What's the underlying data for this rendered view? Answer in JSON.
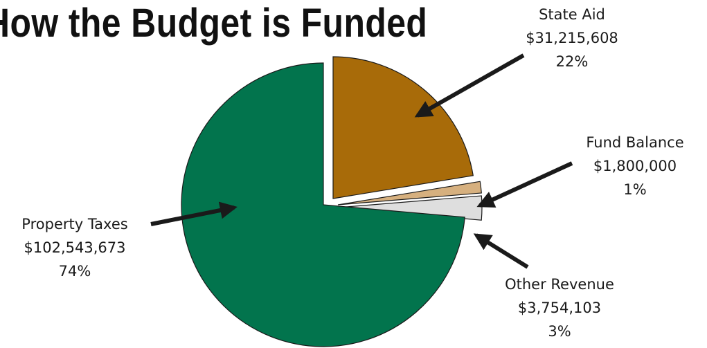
{
  "title": "How the Budget is Funded",
  "chart_data": {
    "type": "pie",
    "title": "How the Budget is Funded",
    "slices": [
      {
        "name": "State Aid",
        "value": 31215608,
        "value_label": "$31,215,608",
        "percent_label": "22%",
        "color": "#a86b09"
      },
      {
        "name": "Fund Balance",
        "value": 1800000,
        "value_label": "$1,800,000",
        "percent_label": "1%",
        "color": "#d6b07f"
      },
      {
        "name": "Other Revenue",
        "value": 3754103,
        "value_label": "$3,754,103",
        "percent_label": "3%",
        "color": "#dedede"
      },
      {
        "name": "Property Taxes",
        "value": 102543673,
        "value_label": "$102,543,673",
        "percent_label": "74%",
        "color": "#02744d"
      }
    ],
    "legend": "none",
    "exploded": true,
    "label_style": "callouts with arrows"
  }
}
